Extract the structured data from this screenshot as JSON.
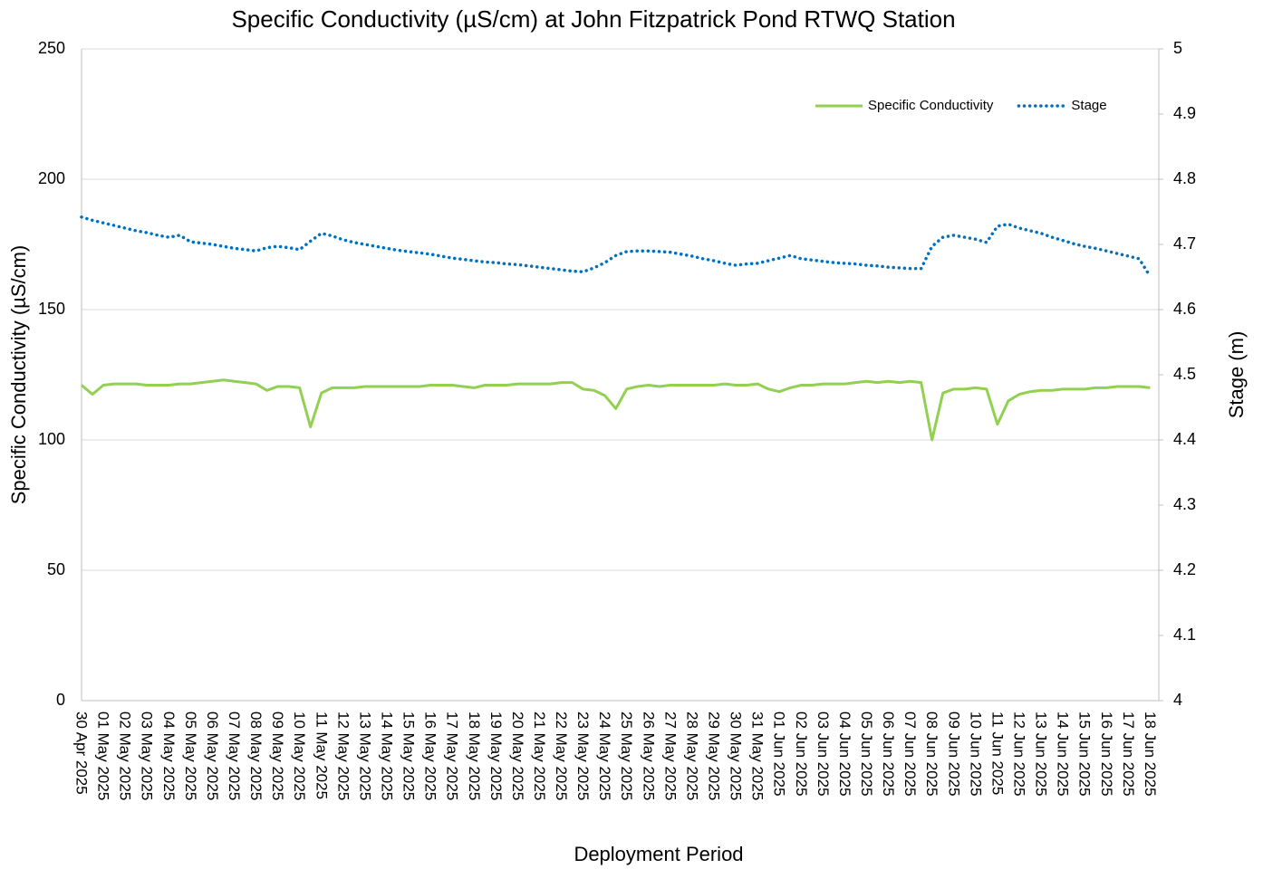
{
  "chart_data": {
    "type": "line",
    "title": "Specific Conductivity (µS/cm) at John Fitzpatrick Pond RTWQ Station",
    "x_label": "Deployment Period",
    "y_label": "Specific Conductivity (µS/cm)",
    "y2_label": "Stage (m)",
    "categories": [
      "30 Apr 2025",
      null,
      "01 May 2025",
      null,
      "02 May 2025",
      null,
      "03 May 2025",
      null,
      "04 May 2025",
      null,
      "05 May 2025",
      null,
      "06 May 2025",
      null,
      "07 May 2025",
      null,
      "08 May 2025",
      null,
      "09 May 2025",
      null,
      "10 May 2025",
      null,
      "11 May 2025",
      null,
      "12 May 2025",
      null,
      "13 May 2025",
      null,
      "14 May 2025",
      null,
      "15 May 2025",
      null,
      "16 May 2025",
      null,
      "17 May 2025",
      null,
      "18 May 2025",
      null,
      "19 May 2025",
      null,
      "20 May 2025",
      null,
      "21 May 2025",
      null,
      "22 May 2025",
      null,
      "23 May 2025",
      null,
      "24 May 2025",
      null,
      "25 May 2025",
      null,
      "26 May 2025",
      null,
      "27 May 2025",
      null,
      "28 May 2025",
      null,
      "29 May 2025",
      null,
      "30 May 2025",
      null,
      "31 May 2025",
      null,
      "01 Jun 2025",
      null,
      "02 Jun 2025",
      null,
      "03 Jun 2025",
      null,
      "04 Jun 2025",
      null,
      "05 Jun 2025",
      null,
      "06 Jun 2025",
      null,
      "07 Jun 2025",
      null,
      "08 Jun 2025",
      null,
      "09 Jun 2025",
      null,
      "10 Jun 2025",
      null,
      "11 Jun 2025",
      null,
      "12 Jun 2025",
      null,
      "13 Jun 2025",
      null,
      "14 Jun 2025",
      null,
      "15 Jun 2025",
      null,
      "16 Jun 2025",
      null,
      "17 Jun 2025",
      null,
      "18 Jun 2025"
    ],
    "series": [
      {
        "name": "Specific Conductivity",
        "color": "#92d050",
        "line_style": "solid",
        "axis": "y",
        "values": [
          121,
          117.5,
          121,
          121.5,
          121.5,
          121.5,
          121,
          121,
          121,
          121.5,
          121.5,
          122,
          122.5,
          123,
          122.5,
          122,
          121.5,
          119,
          120.5,
          120.5,
          120,
          105,
          118,
          120,
          120,
          120,
          120.5,
          120.5,
          120.5,
          120.5,
          120.5,
          120.5,
          121,
          121,
          121,
          120.5,
          120,
          121,
          121,
          121,
          121.5,
          121.5,
          121.5,
          121.5,
          122,
          122,
          119.5,
          119,
          117,
          112,
          119.5,
          120.5,
          121,
          120.5,
          121,
          121,
          121,
          121,
          121,
          121.5,
          121,
          121,
          121.5,
          119.5,
          118.5,
          120,
          121,
          121,
          121.5,
          121.5,
          121.5,
          122,
          122.5,
          122,
          122.5,
          122,
          122.5,
          122,
          100,
          118,
          119.5,
          119.5,
          120,
          119.5,
          106,
          115,
          117.5,
          118.5,
          119,
          119,
          119.5,
          119.5,
          119.5,
          120,
          120,
          120.5,
          120.5,
          120.5,
          120
        ]
      },
      {
        "name": "Stage",
        "color": "#0070c0",
        "line_style": "dotted",
        "axis": "y2",
        "values": [
          4.742,
          4.737,
          4.733,
          4.729,
          4.725,
          4.721,
          4.718,
          4.714,
          4.711,
          4.714,
          4.704,
          4.702,
          4.7,
          4.697,
          4.694,
          4.692,
          4.69,
          4.695,
          4.697,
          4.695,
          4.692,
          4.705,
          4.717,
          4.713,
          4.707,
          4.703,
          4.7,
          4.697,
          4.694,
          4.691,
          4.689,
          4.687,
          4.685,
          4.682,
          4.679,
          4.677,
          4.675,
          4.673,
          4.672,
          4.67,
          4.669,
          4.667,
          4.665,
          4.663,
          4.661,
          4.659,
          4.658,
          4.664,
          4.672,
          4.683,
          4.689,
          4.69,
          4.69,
          4.689,
          4.688,
          4.685,
          4.682,
          4.678,
          4.675,
          4.671,
          4.668,
          4.67,
          4.671,
          4.675,
          4.679,
          4.683,
          4.678,
          4.676,
          4.674,
          4.672,
          4.671,
          4.67,
          4.668,
          4.667,
          4.665,
          4.664,
          4.663,
          4.663,
          4.697,
          4.711,
          4.714,
          4.711,
          4.708,
          4.703,
          4.728,
          4.731,
          4.725,
          4.721,
          4.717,
          4.711,
          4.706,
          4.701,
          4.697,
          4.694,
          4.69,
          4.686,
          4.682,
          4.678,
          4.651
        ]
      }
    ],
    "ylim": [
      0,
      250
    ],
    "yticks": [
      0,
      50,
      100,
      150,
      200,
      250
    ],
    "y2lim": [
      4,
      5
    ],
    "y2ticks": [
      4,
      4.1,
      4.2,
      4.3,
      4.4,
      4.5,
      4.6,
      4.7,
      4.8,
      4.9,
      5
    ],
    "grid": true,
    "legend": "top-right"
  }
}
